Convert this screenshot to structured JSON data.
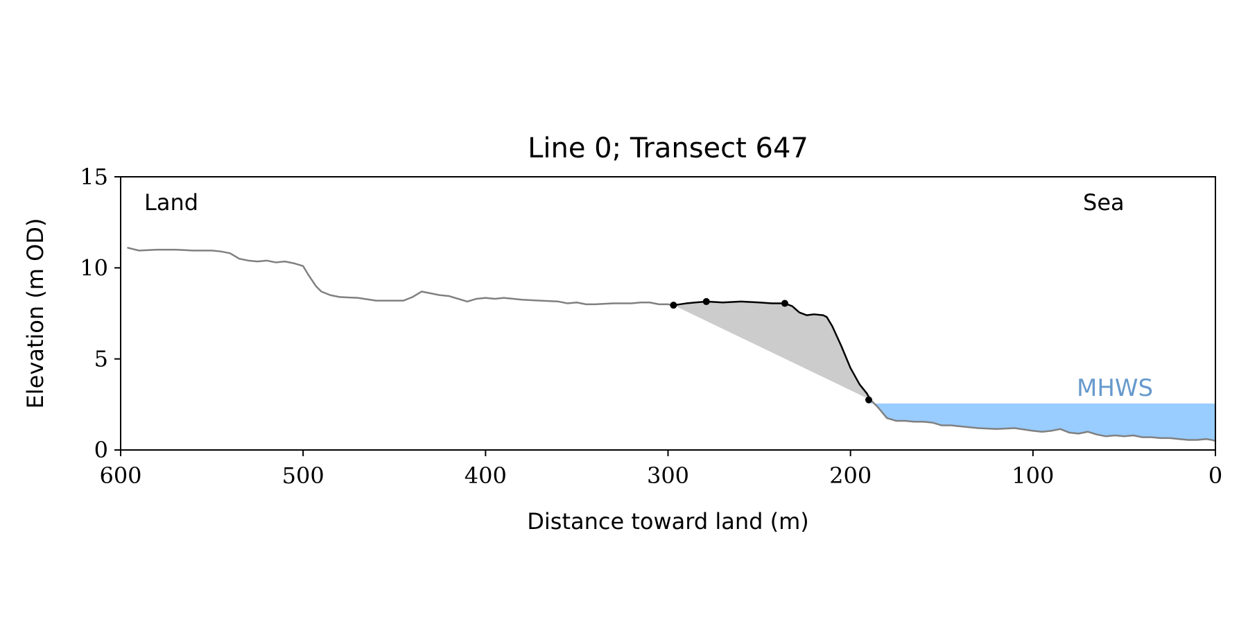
{
  "chart_data": {
    "type": "line",
    "title": "Line 0; Transect 647",
    "xlabel": "Distance toward land (m)",
    "ylabel": "Elevation (m OD)",
    "xlim": [
      600,
      0
    ],
    "ylim": [
      0,
      15
    ],
    "x_axis_reversed": true,
    "xticks": [
      600,
      500,
      400,
      300,
      200,
      100,
      0
    ],
    "yticks": [
      0,
      5,
      10,
      15
    ],
    "grid": false,
    "annotations": {
      "left": "Land",
      "right": "Sea",
      "mhws_label": "MHWS"
    },
    "mhws_level": 2.55,
    "colors": {
      "profile": "#808080",
      "cliff": "#000000",
      "fill": "#cccccc",
      "water": "#99ccff",
      "mhws_text": "#6699cc"
    },
    "series": [
      {
        "role": "profile",
        "x": [
          596,
          590,
          580,
          570,
          560,
          550,
          545,
          540,
          535,
          530,
          525,
          520,
          515,
          510,
          505,
          500,
          497,
          493,
          490,
          485,
          480,
          470,
          460,
          450,
          445,
          440,
          435,
          430,
          425,
          420,
          410,
          405,
          400,
          395,
          390,
          380,
          370,
          360,
          355,
          350,
          345,
          340,
          330,
          320,
          315,
          310,
          305,
          300,
          297
        ],
        "y": [
          11.1,
          10.95,
          11.0,
          11.0,
          10.95,
          10.95,
          10.9,
          10.8,
          10.5,
          10.4,
          10.35,
          10.4,
          10.3,
          10.35,
          10.25,
          10.1,
          9.6,
          9.0,
          8.7,
          8.5,
          8.4,
          8.35,
          8.2,
          8.2,
          8.2,
          8.4,
          8.7,
          8.6,
          8.5,
          8.45,
          8.15,
          8.3,
          8.35,
          8.3,
          8.35,
          8.25,
          8.2,
          8.15,
          8.05,
          8.1,
          8.0,
          8.0,
          8.05,
          8.05,
          8.1,
          8.1,
          8.0,
          8.0,
          7.95
        ]
      },
      {
        "role": "cliff",
        "x": [
          297,
          290,
          285,
          279,
          270,
          260,
          250,
          243,
          236,
          232,
          228,
          224,
          220,
          215,
          213,
          210,
          205,
          200,
          195,
          191,
          189
        ],
        "y": [
          7.95,
          8.05,
          8.1,
          8.15,
          8.1,
          8.15,
          8.1,
          8.05,
          8.05,
          7.9,
          7.55,
          7.4,
          7.45,
          7.4,
          7.3,
          6.8,
          5.7,
          4.5,
          3.6,
          3.1,
          2.75
        ]
      },
      {
        "role": "foreshore",
        "x": [
          189,
          185,
          180,
          175,
          170,
          165,
          160,
          155,
          150,
          145,
          140,
          130,
          120,
          110,
          100,
          95,
          90,
          85,
          80,
          75,
          70,
          65,
          60,
          55,
          50,
          45,
          40,
          35,
          30,
          25,
          20,
          15,
          10,
          5,
          2,
          0
        ],
        "y": [
          2.75,
          2.35,
          1.75,
          1.6,
          1.6,
          1.55,
          1.55,
          1.5,
          1.35,
          1.35,
          1.3,
          1.2,
          1.15,
          1.2,
          1.05,
          1.0,
          1.05,
          1.15,
          0.95,
          0.9,
          1.0,
          0.85,
          0.75,
          0.8,
          0.75,
          0.8,
          0.7,
          0.7,
          0.65,
          0.65,
          0.6,
          0.55,
          0.55,
          0.6,
          0.55,
          0.5
        ]
      }
    ],
    "markers": {
      "x": [
        297,
        279,
        236,
        190
      ],
      "y": [
        7.95,
        8.15,
        8.05,
        2.75
      ]
    }
  }
}
